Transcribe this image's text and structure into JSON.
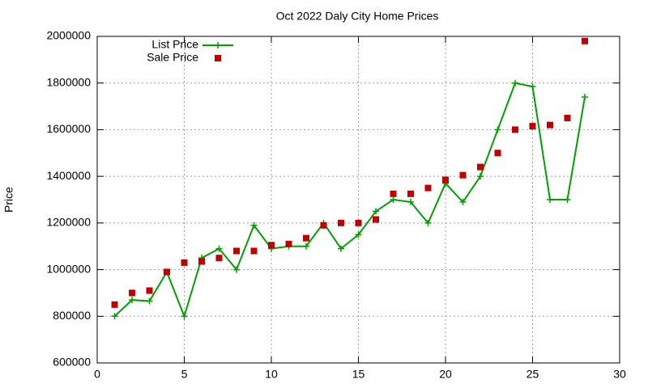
{
  "chart_data": {
    "type": "line",
    "title": "Oct 2022 Daly City Home Prices",
    "y_label": "Price",
    "x": [
      1,
      2,
      3,
      4,
      5,
      6,
      7,
      8,
      9,
      10,
      11,
      12,
      13,
      14,
      15,
      16,
      17,
      18,
      19,
      20,
      21,
      22,
      23,
      24,
      25,
      26,
      27,
      28
    ],
    "series": [
      {
        "name": "List Price",
        "color": "#00a000",
        "style": "linespoints",
        "values": [
          800000,
          870000,
          865000,
          990000,
          800000,
          1050000,
          1090000,
          1000000,
          1190000,
          1090000,
          1100000,
          1100000,
          1200000,
          1090000,
          1150000,
          1250000,
          1300000,
          1290000,
          1200000,
          1370000,
          1290000,
          1400000,
          1600000,
          1800000,
          1785000,
          1300000,
          1300000,
          1740000
        ]
      },
      {
        "name": "Sale Price",
        "color": "#c00000",
        "style": "points",
        "values": [
          850000,
          900000,
          910000,
          990000,
          1030000,
          1035000,
          1050000,
          1080000,
          1080000,
          1105000,
          1110000,
          1135000,
          1190000,
          1200000,
          1200000,
          1215000,
          1325000,
          1325000,
          1350000,
          1385000,
          1405000,
          1440000,
          1500000,
          1600000,
          1615000,
          1620000,
          1650000,
          1980000
        ]
      }
    ],
    "xlim": [
      0,
      30
    ],
    "ylim": [
      600000,
      2000000
    ],
    "xticks": [
      0,
      5,
      10,
      15,
      20,
      25,
      30
    ],
    "yticks": [
      600000,
      800000,
      1000000,
      1200000,
      1400000,
      1600000,
      1800000,
      2000000
    ],
    "grid": true,
    "legend": "top left"
  }
}
